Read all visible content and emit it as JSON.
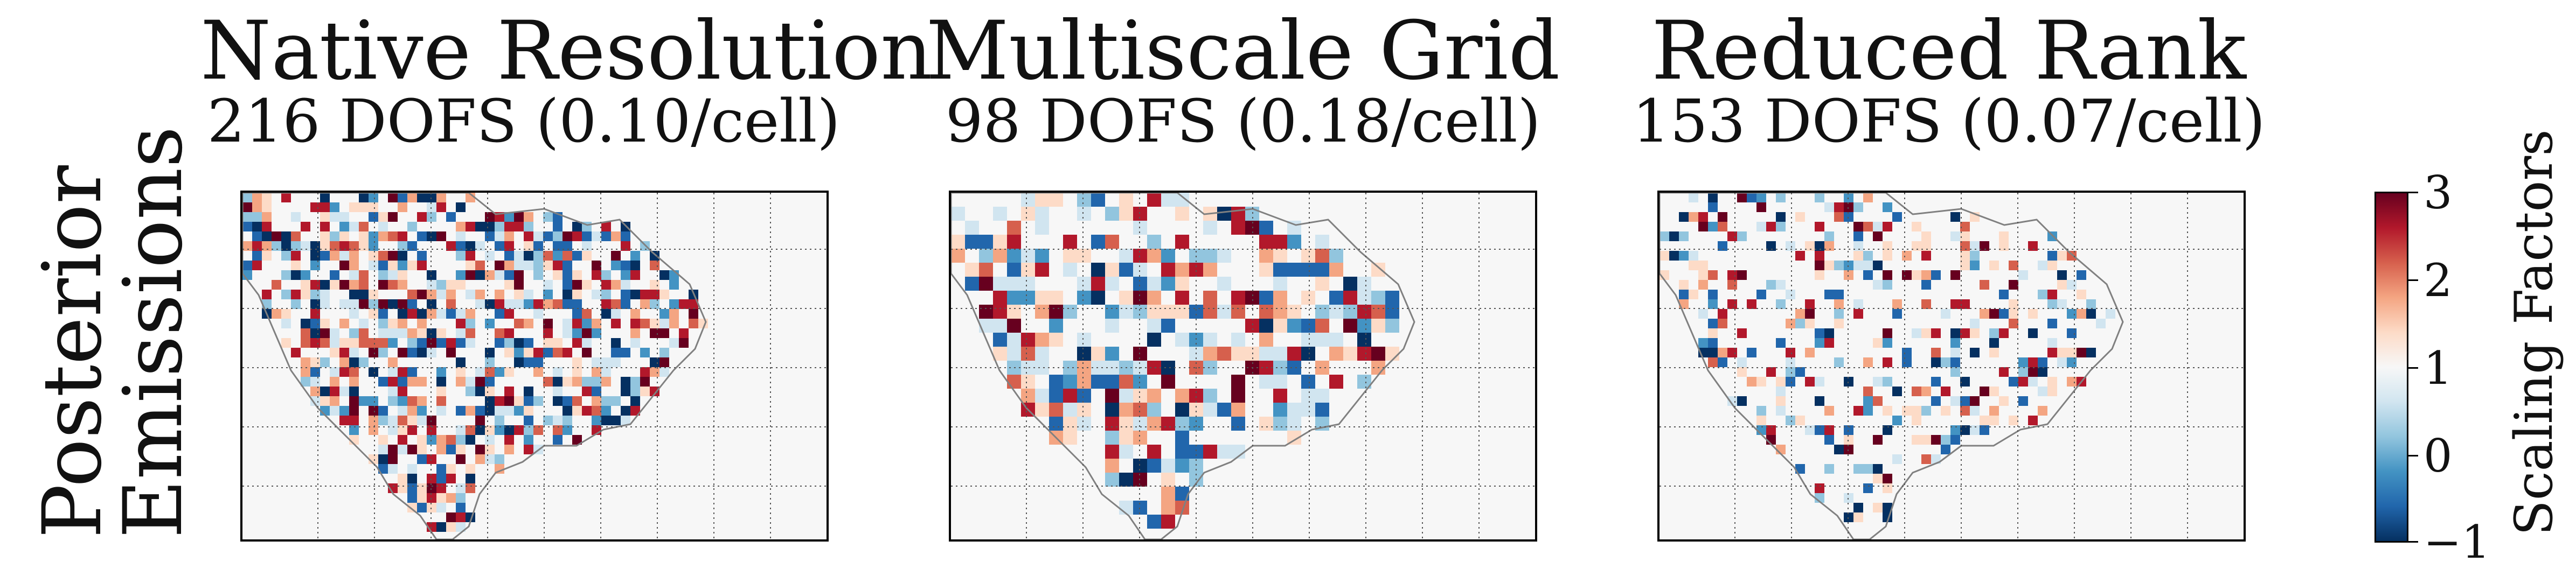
{
  "row_label": [
    "Posterior",
    "Emissions"
  ],
  "panels": [
    {
      "title": "Native Resolution",
      "subtitle": "216 DOFS (0.10/cell)"
    },
    {
      "title": "Multiscale Grid",
      "subtitle": "98 DOFS (0.18/cell)"
    },
    {
      "title": "Reduced Rank",
      "subtitle": "153 DOFS (0.07/cell)"
    }
  ],
  "colorbar": {
    "title": "Scaling Factors",
    "ticks": [
      "3",
      "2",
      "1",
      "0",
      "−1"
    ],
    "min": -1,
    "max": 3,
    "colormap": "RdBu_r",
    "colors": [
      "#053061",
      "#2166ac",
      "#4393c3",
      "#92c5de",
      "#d1e5f0",
      "#f7f7f7",
      "#fddbc7",
      "#f4a582",
      "#d6604d",
      "#b2182b",
      "#67001f"
    ]
  },
  "chart_data": {
    "type": "heatmap",
    "description_of_values": "Posterior emission scaling factors on a grid over North America (three panels); color scale from -1 to 3.",
    "panels": [
      {
        "title": "Native Resolution",
        "subtitle": "216 DOFS (0.10/cell)",
        "dofs": 216,
        "dofs_per_cell": 0.1
      },
      {
        "title": "Multiscale Grid",
        "subtitle": "98 DOFS (0.18/cell)",
        "dofs": 98,
        "dofs_per_cell": 0.18
      },
      {
        "title": "Reduced Rank",
        "subtitle": "153 DOFS (0.07/cell)",
        "dofs": 153,
        "dofs_per_cell": 0.07
      }
    ],
    "value_range": [
      -1,
      3
    ],
    "colorbar_label": "Scaling Factors",
    "colorbar_ticks": [
      -1,
      0,
      1,
      2,
      3
    ],
    "gridlines": "dotted lat/lon graticule",
    "region": "North America"
  }
}
